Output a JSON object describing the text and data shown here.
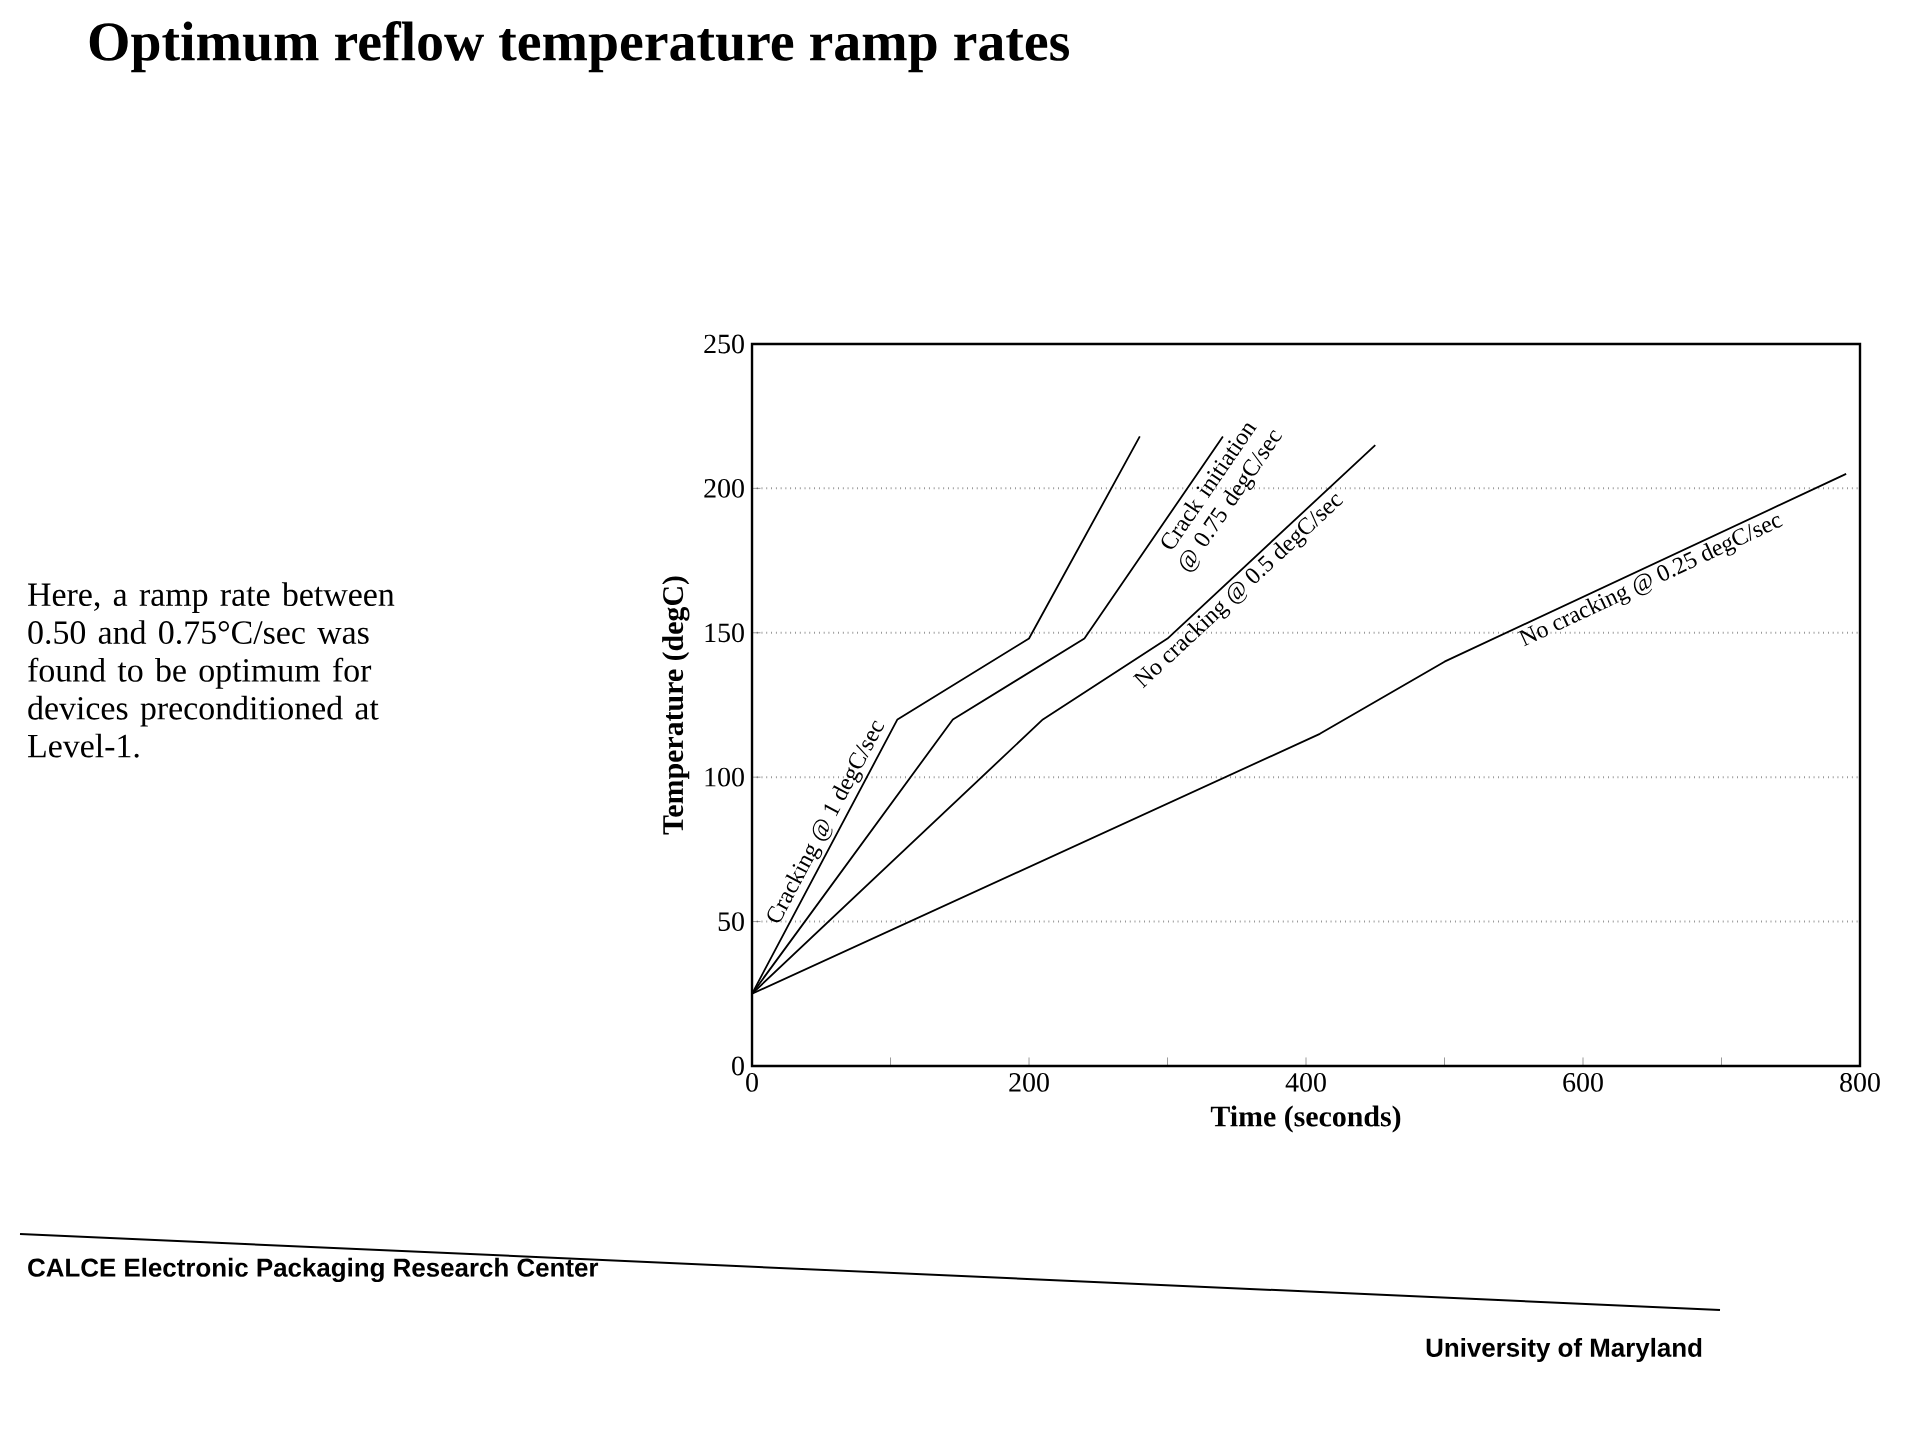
{
  "chart_data": {
    "type": "line",
    "title": "Optimum reflow temperature ramp rates",
    "xlabel": "Time (seconds)",
    "ylabel": "Temperature (degC)",
    "series": [
      {
        "name": "Cracking @ 1 degC/sec",
        "color": "#000000",
        "x": [
          0,
          105,
          200,
          280
        ],
        "values": [
          25,
          120,
          148,
          218
        ]
      },
      {
        "name": "Crack initiation @ 0.75 degC/sec",
        "color": "#000000",
        "x": [
          0,
          145,
          240,
          340
        ],
        "values": [
          25,
          120,
          148,
          218
        ]
      },
      {
        "name": "No cracking @ 0.5 degC/sec",
        "color": "#000000",
        "x": [
          0,
          210,
          300,
          450
        ],
        "values": [
          25,
          120,
          148,
          215
        ]
      },
      {
        "name": "No cracking @ 0.25 degC/sec",
        "color": "#000000",
        "x": [
          0,
          410,
          500,
          790
        ],
        "values": [
          25,
          115,
          140,
          205
        ]
      }
    ],
    "xlim": [
      0,
      800
    ],
    "ylim": [
      0,
      250
    ],
    "xticks": [
      0,
      {
        "value": 100,
        "label": null
      },
      200,
      {
        "value": 300,
        "label": null
      },
      400,
      {
        "value": 500,
        "label": null
      },
      600,
      {
        "value": 700,
        "label": null
      },
      800
    ],
    "yticks": [
      0,
      50,
      100,
      150,
      200,
      250
    ],
    "grid": "y",
    "legend": false,
    "marker": "none",
    "line_style": "solid",
    "annotations": [
      "Here, a ramp rate between 0.50 and 0.75°C/sec was found to be optimum for devices preconditioned at Level-1.",
      "CALCE Electronic Packaging Research Center",
      "University of Maryland"
    ]
  }
}
